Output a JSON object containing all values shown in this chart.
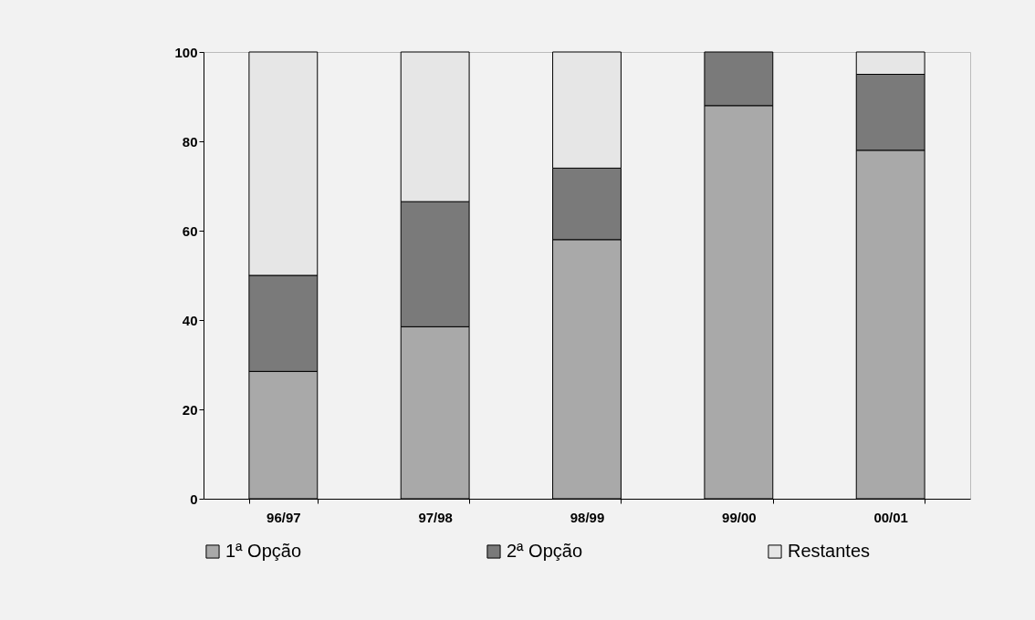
{
  "chart_data": {
    "type": "bar",
    "stacked": true,
    "categories": [
      "96/97",
      "97/98",
      "98/99",
      "99/00",
      "00/01"
    ],
    "series": [
      {
        "name": "1ª Opção",
        "color": "#a9a9a9",
        "values": [
          28.5,
          38.5,
          58,
          88,
          78
        ]
      },
      {
        "name": "2ª Opção",
        "color": "#7a7a7a",
        "values": [
          21.5,
          28,
          16,
          12,
          17
        ]
      },
      {
        "name": "Restantes",
        "color": "#e6e6e6",
        "values": [
          50,
          33.5,
          26,
          0,
          5
        ]
      }
    ],
    "ylim": [
      0,
      100
    ],
    "yticks": [
      0,
      20,
      40,
      60,
      80,
      100
    ],
    "grid": false,
    "legend": "bottom"
  }
}
